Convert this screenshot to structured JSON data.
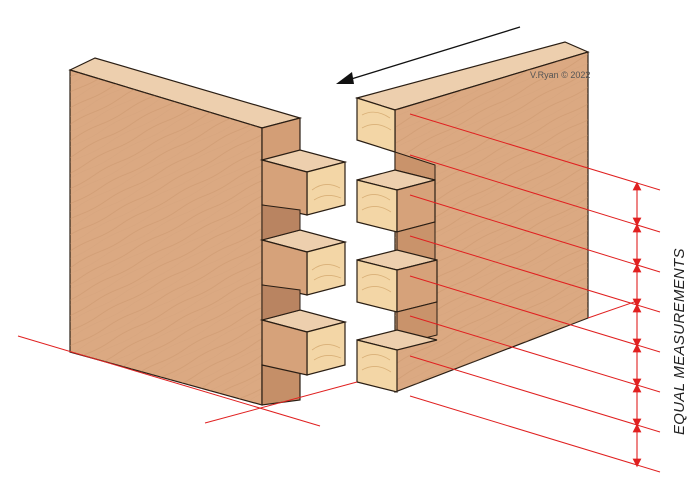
{
  "copyright": "V.Ryan © 2022",
  "dimension_label": "EQUAL MEASUREMENTS",
  "colors": {
    "wood_face": "#dba982",
    "wood_face_light": "#e9c5a3",
    "wood_top": "#edcfae",
    "end_grain": "#f3d6a6",
    "outline": "#2a1e14",
    "measure_line": "#e02020",
    "arrow": "#111111"
  },
  "icons": {
    "arrow": "assembly-direction-arrow",
    "dimension": "dimension-arrow-icon"
  }
}
